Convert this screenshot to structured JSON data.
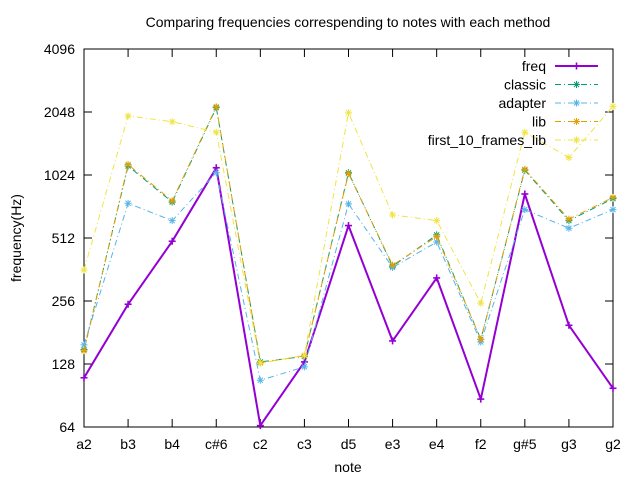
{
  "chart_data": {
    "type": "line",
    "title": "Comparing frequencies correspending to notes with each method",
    "xlabel": "note",
    "ylabel": "frequency(Hz)",
    "y_scale": "log2",
    "ylim": [
      64,
      4096
    ],
    "y_ticks": [
      "64",
      "128",
      "256",
      "512",
      "1024",
      "2048",
      "4096"
    ],
    "categories": [
      "a2",
      "b3",
      "b4",
      "c#6",
      "c2",
      "c3",
      "d5",
      "e3",
      "e4",
      "f2",
      "g#5",
      "g3",
      "g2"
    ],
    "grid": false,
    "legend_position": "top-right",
    "series": [
      {
        "name": "freq",
        "color": "#9400d3",
        "line_style": "solid",
        "marker": "plus",
        "values": [
          110,
          247,
          494,
          1109,
          65,
          131,
          587,
          165,
          330,
          87,
          831,
          196,
          98
        ]
      },
      {
        "name": "classic",
        "color": "#009e73",
        "line_style": "dash-dot",
        "marker": "asterisk",
        "values": [
          150,
          1130,
          760,
          2150,
          131,
          139,
          1050,
          375,
          530,
          168,
          1080,
          620,
          790
        ]
      },
      {
        "name": "adapter",
        "color": "#56b4e9",
        "line_style": "dash-dot",
        "marker": "asterisk",
        "values": [
          158,
          750,
          620,
          1050,
          107,
          124,
          745,
          370,
          490,
          163,
          700,
          570,
          700
        ]
      },
      {
        "name": "lib",
        "color": "#e69f00",
        "line_style": "dash-dot",
        "marker": "asterisk",
        "values": [
          148,
          1150,
          770,
          2170,
          130,
          140,
          1040,
          380,
          520,
          168,
          1090,
          630,
          800
        ]
      },
      {
        "name": "first_10_frames_lib",
        "color": "#f0e442",
        "line_style": "dash-dot",
        "marker": "asterisk",
        "values": [
          360,
          1960,
          1840,
          1640,
          129,
          141,
          2030,
          660,
          620,
          250,
          1640,
          1240,
          2180
        ]
      }
    ]
  }
}
